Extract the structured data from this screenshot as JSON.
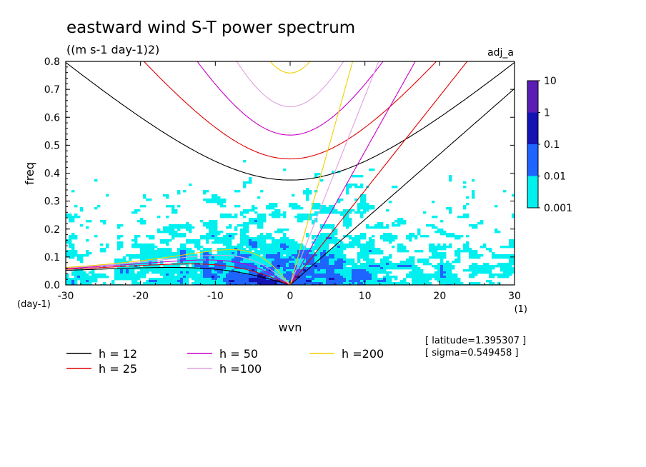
{
  "chart_data": {
    "type": "heatmap",
    "title": "eastward wind S-T power spectrum",
    "subtitle": "((m s-1 day-1)2)",
    "tag": "adj_a",
    "xlabel": "wvn",
    "ylabel": "freq",
    "x_unit": "(1)",
    "y_unit": "(day-1)",
    "xlim": [
      -30,
      30
    ],
    "ylim": [
      0,
      0.8
    ],
    "x_ticks": [
      -30,
      -20,
      -10,
      0,
      10,
      20,
      30
    ],
    "y_ticks": [
      0.0,
      0.1,
      0.2,
      0.3,
      0.4,
      0.5,
      0.6,
      0.7,
      0.8
    ],
    "x_tick_labels": [
      "-30",
      "-20",
      "-10",
      "0",
      "10",
      "20",
      "30"
    ],
    "y_tick_labels": [
      "0.0",
      "0.1",
      "0.2",
      "0.3",
      "0.4",
      "0.5",
      "0.6",
      "0.7",
      "0.8"
    ],
    "colorbar": {
      "levels": [
        "10",
        "1",
        "0.1",
        "0.01",
        "0.001"
      ],
      "colors": [
        "#5a1eb4",
        "#1414b4",
        "#1e64ff",
        "#00f0f0"
      ]
    },
    "annotations": [
      "[ latitude=1.395307 ]",
      "[ sigma=0.549458 ]"
    ],
    "series": [
      {
        "name": "h = 12",
        "color": "#000000",
        "h": 12
      },
      {
        "name": "h = 25",
        "color": "#e00000",
        "h": 25
      },
      {
        "name": "h = 50",
        "color": "#c800c8",
        "h": 50
      },
      {
        "name": "h =100",
        "color": "#e0a0e0",
        "h": 100
      },
      {
        "name": "h =200",
        "color": "#f0d000",
        "h": 200
      }
    ]
  }
}
